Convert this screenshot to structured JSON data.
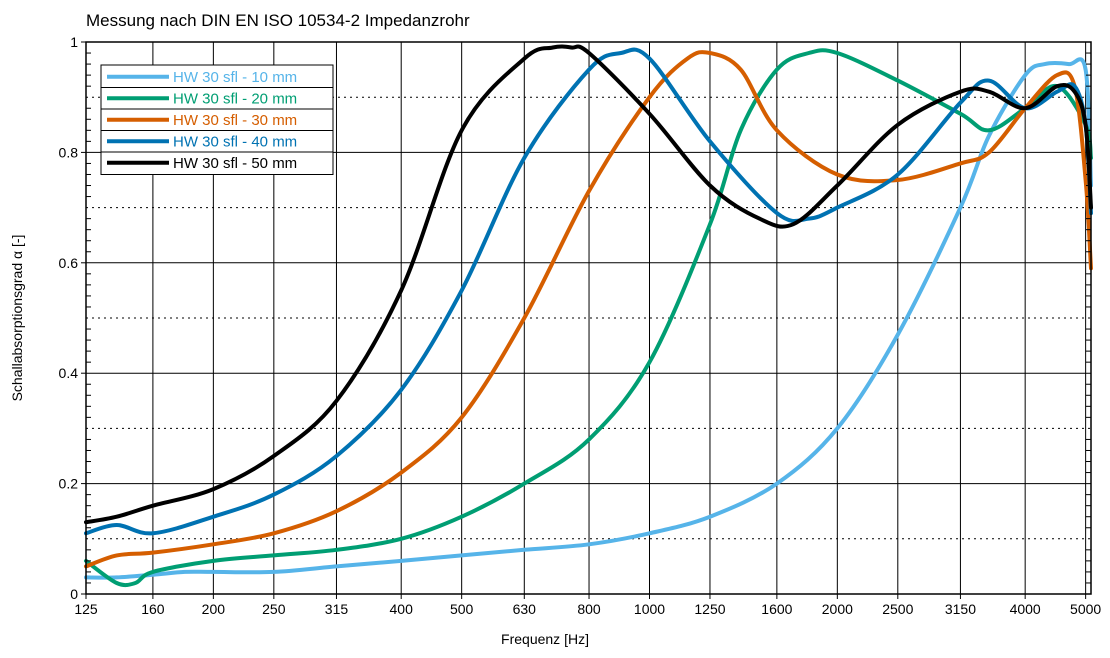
{
  "chart_data": {
    "type": "line",
    "title": "Messung nach DIN EN ISO 10534-2 Impedanzrohr",
    "xlabel": "Frequenz [Hz]",
    "ylabel": "Schallabsorptionsgrad α [-]",
    "x_scale": "log",
    "xlim": [
      125,
      5100
    ],
    "ylim": [
      0,
      1
    ],
    "grid": true,
    "legend_position": "top-left",
    "x_ticks": [
      125,
      160,
      200,
      250,
      315,
      400,
      500,
      630,
      800,
      1000,
      1250,
      1600,
      2000,
      2500,
      3150,
      4000,
      5000
    ],
    "x_tick_labels": [
      "125",
      "160",
      "200",
      "250",
      "315",
      "400",
      "500",
      "630",
      "800",
      "1000",
      "1250",
      "1600",
      "2000",
      "2500",
      "3150",
      "4000",
      "5000"
    ],
    "y_ticks": [
      0,
      0.2,
      0.4,
      0.6,
      0.8,
      1
    ],
    "y_tick_labels": [
      "0",
      "0.2",
      "0.4",
      "0.6",
      "0.8",
      "1"
    ],
    "series": [
      {
        "name": "HW 30 sfl - 10 mm",
        "color": "#56b4e9",
        "x": [
          125,
          140,
          160,
          180,
          200,
          250,
          315,
          400,
          500,
          630,
          800,
          1000,
          1250,
          1600,
          2000,
          2500,
          3150,
          3500,
          4000,
          4300,
          4700,
          5000,
          5100
        ],
        "y": [
          0.03,
          0.03,
          0.035,
          0.04,
          0.04,
          0.04,
          0.05,
          0.06,
          0.07,
          0.08,
          0.09,
          0.11,
          0.14,
          0.2,
          0.3,
          0.47,
          0.7,
          0.83,
          0.94,
          0.96,
          0.96,
          0.95,
          0.74
        ]
      },
      {
        "name": "HW 30 sfl - 20 mm",
        "color": "#009e73",
        "x": [
          125,
          140,
          150,
          160,
          200,
          250,
          315,
          400,
          500,
          630,
          800,
          1000,
          1250,
          1400,
          1600,
          1800,
          2000,
          2500,
          3150,
          3500,
          4000,
          4500,
          5000,
          5100
        ],
        "y": [
          0.06,
          0.02,
          0.02,
          0.04,
          0.06,
          0.07,
          0.08,
          0.1,
          0.14,
          0.2,
          0.28,
          0.42,
          0.67,
          0.84,
          0.95,
          0.98,
          0.98,
          0.93,
          0.87,
          0.84,
          0.88,
          0.92,
          0.85,
          0.79
        ]
      },
      {
        "name": "HW 30 sfl - 30 mm",
        "color": "#d55e00",
        "x": [
          125,
          140,
          160,
          200,
          250,
          315,
          400,
          500,
          630,
          800,
          1000,
          1150,
          1250,
          1400,
          1600,
          2000,
          2500,
          3150,
          3500,
          4000,
          4500,
          4800,
          5000,
          5100
        ],
        "y": [
          0.05,
          0.07,
          0.075,
          0.09,
          0.11,
          0.15,
          0.22,
          0.32,
          0.5,
          0.73,
          0.9,
          0.97,
          0.98,
          0.95,
          0.84,
          0.76,
          0.75,
          0.78,
          0.8,
          0.88,
          0.94,
          0.92,
          0.75,
          0.59
        ]
      },
      {
        "name": "HW 30 sfl - 40 mm",
        "color": "#0072b2",
        "x": [
          125,
          140,
          160,
          200,
          250,
          315,
          400,
          500,
          630,
          800,
          900,
          1000,
          1250,
          1600,
          1800,
          2000,
          2500,
          3150,
          3500,
          4000,
          4500,
          4800,
          5000,
          5100
        ],
        "y": [
          0.11,
          0.125,
          0.11,
          0.14,
          0.18,
          0.25,
          0.37,
          0.55,
          0.79,
          0.95,
          0.98,
          0.97,
          0.82,
          0.69,
          0.68,
          0.7,
          0.76,
          0.89,
          0.93,
          0.88,
          0.91,
          0.92,
          0.85,
          0.69
        ]
      },
      {
        "name": "HW 30 sfl - 50 mm",
        "color": "#000000",
        "x": [
          125,
          140,
          160,
          200,
          250,
          315,
          400,
          500,
          630,
          700,
          750,
          800,
          1000,
          1250,
          1500,
          1700,
          2000,
          2500,
          3150,
          3500,
          4000,
          4500,
          4800,
          5000,
          5100
        ],
        "y": [
          0.13,
          0.14,
          0.16,
          0.19,
          0.25,
          0.35,
          0.55,
          0.84,
          0.97,
          0.99,
          0.99,
          0.98,
          0.87,
          0.74,
          0.68,
          0.67,
          0.74,
          0.85,
          0.91,
          0.91,
          0.88,
          0.92,
          0.91,
          0.85,
          0.7
        ]
      }
    ]
  }
}
